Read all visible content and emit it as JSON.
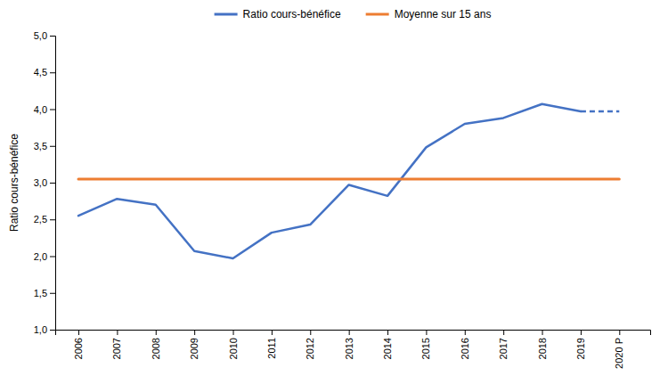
{
  "chart_data": {
    "type": "line",
    "y_label": "Ratio cours-bénéfice",
    "series": [
      {
        "name": "Ratio cours-bénéfice",
        "color": "#4472C4",
        "line_style": "solid",
        "x": [
          2006,
          2007,
          2008,
          2009,
          2010,
          2011,
          2012,
          2013,
          2014,
          2015,
          2016,
          2017,
          2018,
          2019
        ],
        "values": [
          2.55,
          2.78,
          2.7,
          2.07,
          1.97,
          2.32,
          2.43,
          2.97,
          2.82,
          3.48,
          3.8,
          3.88,
          4.07,
          3.97
        ]
      },
      {
        "color": "#4472C4",
        "line_style": "dashed",
        "x": [
          2019,
          2020
        ],
        "values": [
          3.97,
          3.97
        ]
      },
      {
        "name": "Moyenne sur 15 ans",
        "color": "#ED7D31",
        "line_style": "solid",
        "x": [
          2006,
          2020
        ],
        "values": [
          3.05,
          3.05
        ]
      }
    ],
    "xlim": [
      2005.4,
      2020.8
    ],
    "xticks": [
      2006,
      2007,
      2008,
      2009,
      2010,
      2011,
      2012,
      2013,
      2014,
      2015,
      2016,
      2017,
      2018,
      2019,
      {
        "value": 2020,
        "label": "2020 P"
      }
    ],
    "ylim": [
      1.0,
      5.0
    ],
    "yticks": [
      {
        "value": 1.0,
        "label": "1,0"
      },
      {
        "value": 1.5,
        "label": "1,5"
      },
      {
        "value": 2.0,
        "label": "2,0"
      },
      {
        "value": 2.5,
        "label": "2,5"
      },
      {
        "value": 3.0,
        "label": "3,0"
      },
      {
        "value": 3.5,
        "label": "3,5"
      },
      {
        "value": 4.0,
        "label": "4,0"
      },
      {
        "value": 4.5,
        "label": "4,5"
      },
      {
        "value": 5.0,
        "label": "5,0"
      }
    ],
    "grid": false,
    "legend": "top"
  }
}
